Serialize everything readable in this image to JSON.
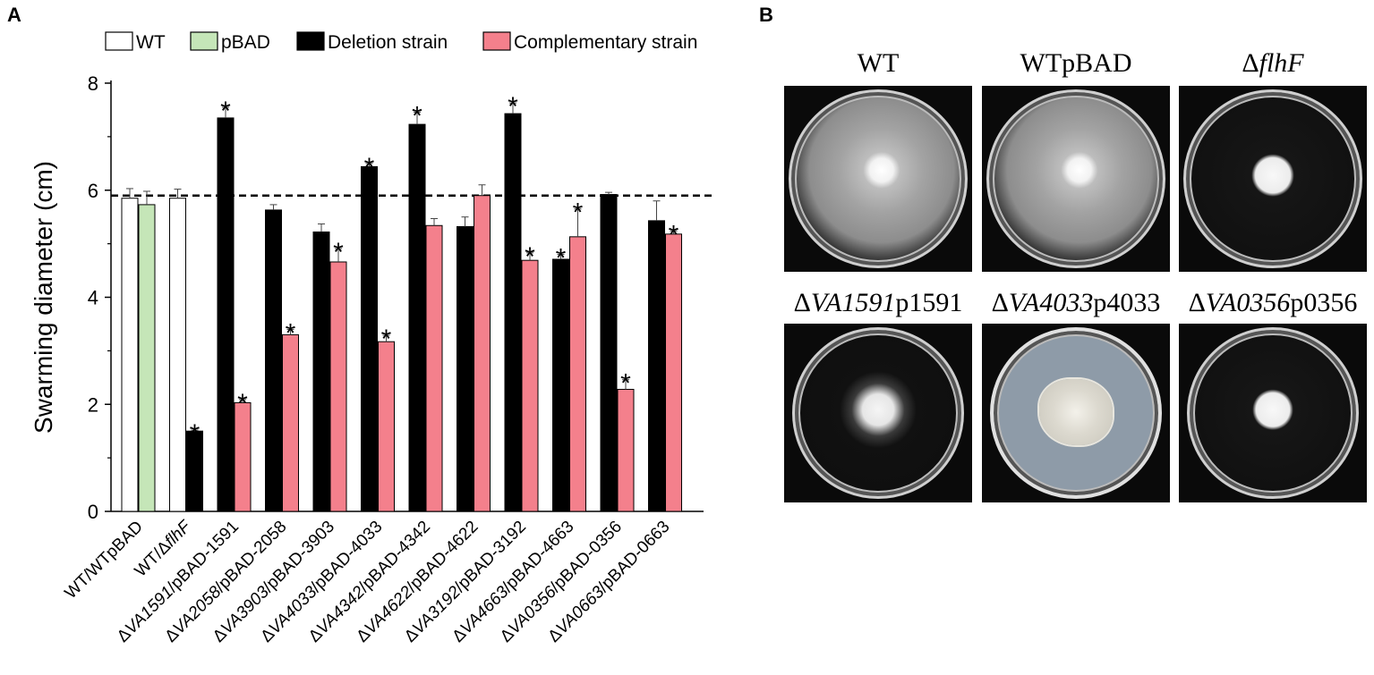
{
  "panel_a": {
    "letter": "A"
  },
  "panel_b": {
    "letter": "B"
  },
  "chart_data": {
    "type": "bar",
    "ylabel": "Swarming diameter (cm)",
    "ylim": [
      0,
      8
    ],
    "yticks": [
      "0",
      "2",
      "4",
      "6",
      "8"
    ],
    "reference_line": 5.9,
    "legend": [
      {
        "name": "WT",
        "color": "#ffffff"
      },
      {
        "name": "pBAD",
        "color": "#c5e6b8"
      },
      {
        "name": "Deletion strain",
        "color": "#000000"
      },
      {
        "name": "Complementary strain",
        "color": "#f4808c"
      }
    ],
    "groups": [
      {
        "label": "WT/WTpBAD",
        "delta": "",
        "italic": "",
        "rest": "WT/WTpBAD",
        "bars": [
          {
            "series": "WT",
            "value": 5.85,
            "err": 0.18,
            "star": false
          },
          {
            "series": "pBAD",
            "value": 5.73,
            "err": 0.25,
            "star": false
          }
        ]
      },
      {
        "label": "WT/ΔflhF",
        "delta": "WT/Δ",
        "italic": "flhF",
        "rest": "",
        "bars": [
          {
            "series": "WT",
            "value": 5.85,
            "err": 0.17,
            "star": false
          },
          {
            "series": "Deletion strain",
            "value": 1.5,
            "err": 0.02,
            "star": true
          }
        ]
      },
      {
        "label": "ΔVA1591/pBAD-1591",
        "delta": "Δ",
        "italic": "VA1591",
        "rest": "/pBAD-1591",
        "bars": [
          {
            "series": "Deletion strain",
            "value": 7.35,
            "err": 0.2,
            "star": true
          },
          {
            "series": "Complementary strain",
            "value": 2.03,
            "err": 0.06,
            "star": true
          }
        ]
      },
      {
        "label": "ΔVA2058/pBAD-2058",
        "delta": "Δ",
        "italic": "VA2058",
        "rest": "/pBAD-2058",
        "bars": [
          {
            "series": "Deletion strain",
            "value": 5.63,
            "err": 0.1,
            "star": false
          },
          {
            "series": "Complementary strain",
            "value": 3.3,
            "err": 0.1,
            "star": true
          }
        ]
      },
      {
        "label": "ΔVA3903/pBAD-3903",
        "delta": "Δ",
        "italic": "VA3903",
        "rest": "/pBAD-3903",
        "bars": [
          {
            "series": "Deletion strain",
            "value": 5.22,
            "err": 0.15,
            "star": false
          },
          {
            "series": "Complementary strain",
            "value": 4.66,
            "err": 0.25,
            "star": true
          }
        ]
      },
      {
        "label": "ΔVA4033/pBAD-4033",
        "delta": "Δ",
        "italic": "VA4033",
        "rest": "/pBAD-4033",
        "bars": [
          {
            "series": "Deletion strain",
            "value": 6.44,
            "err": 0.06,
            "star": true
          },
          {
            "series": "Complementary strain",
            "value": 3.17,
            "err": 0.12,
            "star": true
          }
        ]
      },
      {
        "label": "ΔVA4342/pBAD-4342",
        "delta": "Δ",
        "italic": "VA4342",
        "rest": "/pBAD-4342",
        "bars": [
          {
            "series": "Deletion strain",
            "value": 7.23,
            "err": 0.23,
            "star": true
          },
          {
            "series": "Complementary strain",
            "value": 5.34,
            "err": 0.13,
            "star": false
          }
        ]
      },
      {
        "label": "ΔVA4622/pBAD-4622",
        "delta": "Δ",
        "italic": "VA4622",
        "rest": "/pBAD-4622",
        "bars": [
          {
            "series": "Deletion strain",
            "value": 5.32,
            "err": 0.18,
            "star": false
          },
          {
            "series": "Complementary strain",
            "value": 5.9,
            "err": 0.2,
            "star": false
          }
        ]
      },
      {
        "label": "ΔVA3192/pBAD-3192",
        "delta": "Δ",
        "italic": "VA3192",
        "rest": "/pBAD-3192",
        "bars": [
          {
            "series": "Deletion strain",
            "value": 7.43,
            "err": 0.2,
            "star": true
          },
          {
            "series": "Complementary strain",
            "value": 4.69,
            "err": 0.14,
            "star": true
          }
        ]
      },
      {
        "label": "ΔVA4663/pBAD-4663",
        "delta": "Δ",
        "italic": "VA4663",
        "rest": "/pBAD-4663",
        "bars": [
          {
            "series": "Deletion strain",
            "value": 4.71,
            "err": 0.09,
            "star": true
          },
          {
            "series": "Complementary strain",
            "value": 5.13,
            "err": 0.52,
            "star": true
          }
        ]
      },
      {
        "label": "ΔVA0356/pBAD-0356",
        "delta": "Δ",
        "italic": "VA0356",
        "rest": "/pBAD-0356",
        "bars": [
          {
            "series": "Deletion strain",
            "value": 5.92,
            "err": 0.04,
            "star": false
          },
          {
            "series": "Complementary strain",
            "value": 2.28,
            "err": 0.18,
            "star": true
          }
        ]
      },
      {
        "label": "ΔVA0663/pBAD-0663",
        "delta": "Δ",
        "italic": "VA0663",
        "rest": "/pBAD-0663",
        "bars": [
          {
            "series": "Deletion strain",
            "value": 5.43,
            "err": 0.37,
            "star": false
          },
          {
            "series": "Complementary strain",
            "value": 5.18,
            "err": 0.06,
            "star": true
          }
        ]
      }
    ],
    "star_symbol": "*"
  },
  "plates": [
    {
      "label": "WT",
      "delta": "",
      "italic": "",
      "rest": "WT",
      "type": "swarm-wide"
    },
    {
      "label": "WTpBAD",
      "delta": "",
      "italic": "",
      "rest": "WTpBAD",
      "type": "swarm-wide"
    },
    {
      "label": "ΔflhF",
      "delta": "Δ",
      "italic": "flhF",
      "rest": "",
      "type": "spot"
    },
    {
      "label": "ΔVA1591p1591",
      "delta": "Δ",
      "italic": "VA1591",
      "rest": "p1591",
      "type": "spot-halo"
    },
    {
      "label": "ΔVA4033p4033",
      "delta": "Δ",
      "italic": "VA4033",
      "rest": "p4033",
      "type": "wrinkled"
    },
    {
      "label": "ΔVA0356p0356",
      "delta": "Δ",
      "italic": "VA0356",
      "rest": "p0356",
      "type": "spot"
    }
  ]
}
